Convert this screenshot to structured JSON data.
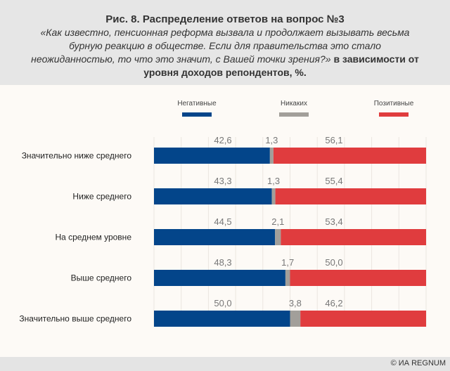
{
  "header": {
    "title": "Рис. 8. Распределение ответов на вопрос №3",
    "question": "«Как известно, пенсионная реформа вызвала и продолжает вызывать весьма бурную реакцию в обществе. Если для правительства это стало неожиданностью, то что это значит, с Вашей точки зрения?»",
    "suffix": "в зависимости от уровня доходов репондентов, %."
  },
  "footer": {
    "credit": "© ИА REGNUM"
  },
  "chart_data": {
    "type": "bar",
    "orientation": "horizontal",
    "stacked": true,
    "categories": [
      "Значительно ниже среднего",
      "Ниже среднего",
      "На среднем уровне",
      "Выше среднего",
      "Значительно выше среднего"
    ],
    "series": [
      {
        "name": "Негативные",
        "color": "#03458a",
        "values": [
          42.6,
          43.3,
          44.5,
          48.3,
          50.0
        ],
        "labels": [
          "42,6",
          "43,3",
          "44,5",
          "48,3",
          "50,0"
        ]
      },
      {
        "name": "Никаких",
        "color": "#a29f9a",
        "values": [
          1.3,
          1.3,
          2.1,
          1.7,
          3.8
        ],
        "labels": [
          "1,3",
          "1,3",
          "2,1",
          "1,7",
          "3,8"
        ]
      },
      {
        "name": "Позитивные",
        "color": "#e03c3e",
        "values": [
          56.1,
          55.4,
          53.4,
          50.0,
          46.2
        ],
        "labels": [
          "56,1",
          "55,4",
          "53,4",
          "50,0",
          "46,2"
        ]
      }
    ],
    "xlim": [
      0,
      100
    ],
    "grid": true,
    "legend": "top"
  }
}
